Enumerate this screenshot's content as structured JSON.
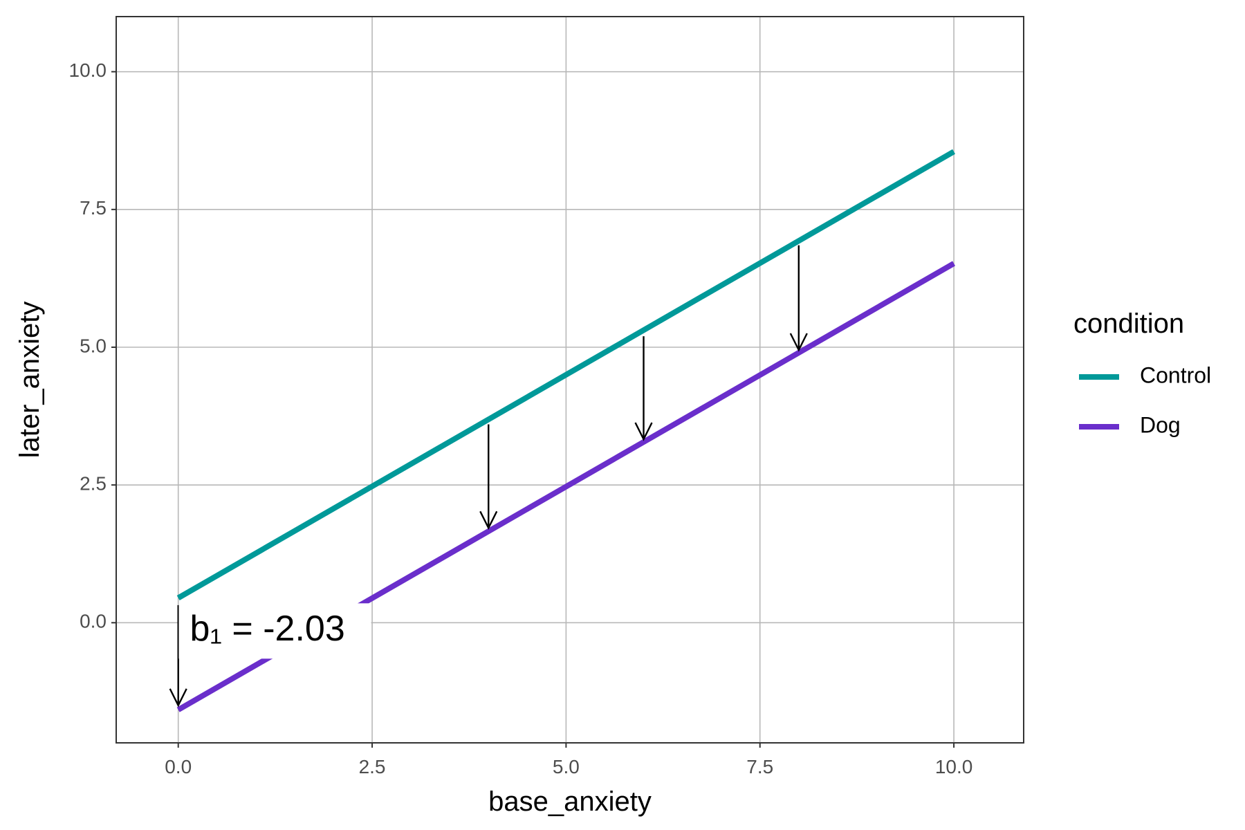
{
  "chart_data": {
    "type": "line",
    "xlabel": "base_anxiety",
    "ylabel": "later_anxiety",
    "xlim": [
      -0.8,
      10.9
    ],
    "ylim": [
      -2.18,
      11.0
    ],
    "x_ticks": [
      0,
      2.5,
      5,
      7.5,
      10
    ],
    "x_tick_labels": [
      "0.0",
      "2.5",
      "5.0",
      "7.5",
      "10.0"
    ],
    "y_ticks": [
      0,
      2.5,
      5,
      7.5,
      10
    ],
    "y_tick_labels": [
      "0.0",
      "2.5",
      "5.0",
      "7.5",
      "10.0"
    ],
    "grid": true,
    "legend": {
      "title": "condition",
      "placement": "right"
    },
    "series": [
      {
        "name": "Control",
        "color": "#009999",
        "x": [
          0,
          10
        ],
        "y": [
          0.45,
          8.55
        ]
      },
      {
        "name": "Dog",
        "color": "#6a2ecb",
        "x": [
          0,
          10
        ],
        "y": [
          -1.58,
          6.52
        ]
      }
    ],
    "arrows": [
      {
        "x": 0,
        "y_from": 0.32,
        "y_to": -1.5
      },
      {
        "x": 4,
        "y_from": 3.6,
        "y_to": 1.72
      },
      {
        "x": 6,
        "y_from": 5.2,
        "y_to": 3.33
      },
      {
        "x": 8,
        "y_from": 6.85,
        "y_to": 4.95
      }
    ],
    "annotation": {
      "text": "b₁ = -2.03",
      "x": 0.15,
      "y": -0.15
    }
  }
}
